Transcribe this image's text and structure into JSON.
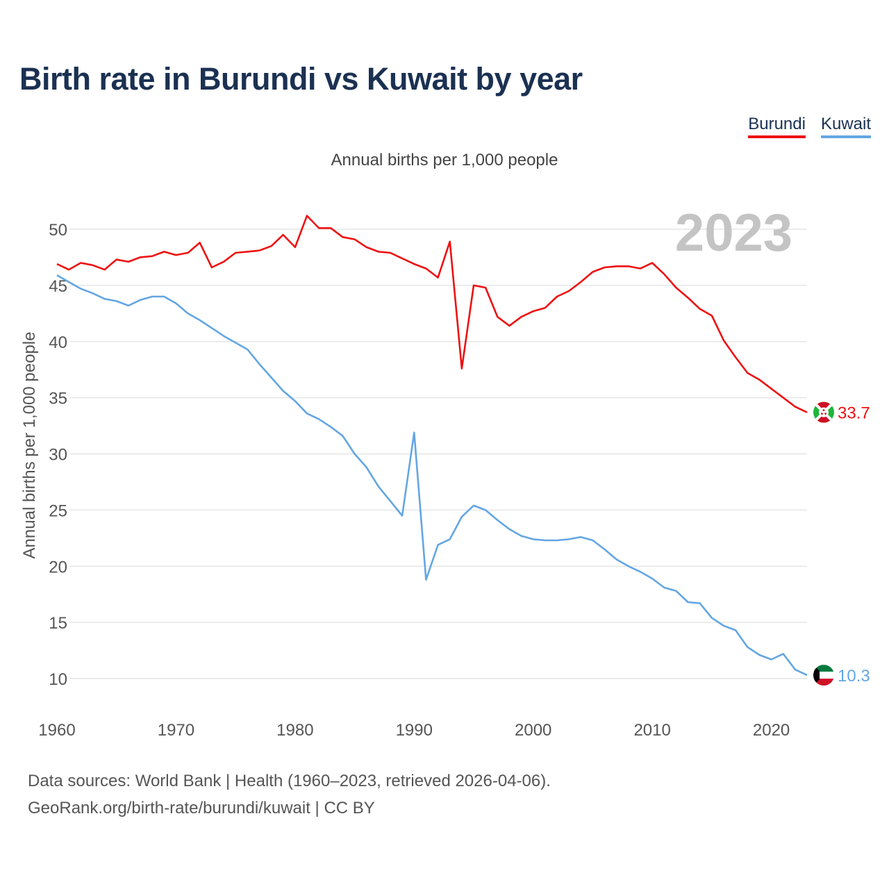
{
  "title": "Birth rate in Burundi vs Kuwait by year",
  "subtitle": "Annual births per 1,000 people",
  "footer": {
    "line1": "Data sources: World Bank | Health (1960–2023, retrieved 2026-04-06).",
    "line2": "GeoRank.org/birth-rate/burundi/kuwait | CC BY"
  },
  "legend": [
    {
      "label": "Burundi",
      "color": "#ee1111"
    },
    {
      "label": "Kuwait",
      "color": "#63a6e3"
    }
  ],
  "chart_data": {
    "type": "line",
    "title": "Birth rate in Burundi vs Kuwait by year",
    "xlabel": "",
    "ylabel": "Annual births per 1,000 people",
    "xlim": [
      1960,
      2023
    ],
    "ylim": [
      7.5,
      53
    ],
    "x_ticks": [
      1960,
      1970,
      1980,
      1990,
      2000,
      2010,
      2020
    ],
    "y_ticks": [
      10,
      15,
      20,
      25,
      30,
      35,
      40,
      45,
      50
    ],
    "year_label": "2023",
    "grid": true,
    "x": [
      1960,
      1961,
      1962,
      1963,
      1964,
      1965,
      1966,
      1967,
      1968,
      1969,
      1970,
      1971,
      1972,
      1973,
      1974,
      1975,
      1976,
      1977,
      1978,
      1979,
      1980,
      1981,
      1982,
      1983,
      1984,
      1985,
      1986,
      1987,
      1988,
      1989,
      1990,
      1991,
      1992,
      1993,
      1994,
      1995,
      1996,
      1997,
      1998,
      1999,
      2000,
      2001,
      2002,
      2003,
      2004,
      2005,
      2006,
      2007,
      2008,
      2009,
      2010,
      2011,
      2012,
      2013,
      2014,
      2015,
      2016,
      2017,
      2018,
      2019,
      2020,
      2021,
      2022,
      2023
    ],
    "series": [
      {
        "name": "Burundi",
        "color": "#ee1111",
        "end_label": "33.7",
        "values": [
          46.9,
          46.4,
          47.0,
          46.8,
          46.4,
          47.3,
          47.1,
          47.5,
          47.6,
          48.0,
          47.7,
          47.9,
          48.8,
          46.6,
          47.1,
          47.9,
          48.0,
          48.1,
          48.5,
          49.5,
          48.4,
          51.2,
          50.1,
          50.1,
          49.3,
          49.1,
          48.4,
          48.0,
          47.9,
          47.4,
          46.9,
          46.5,
          45.7,
          48.9,
          37.6,
          45.0,
          44.8,
          42.2,
          41.4,
          42.2,
          42.7,
          43.0,
          44.0,
          44.5,
          45.3,
          46.2,
          46.6,
          46.7,
          46.7,
          46.5,
          47.0,
          46.0,
          44.8,
          43.9,
          42.9,
          42.3,
          40.1,
          38.6,
          37.2,
          36.6,
          35.8,
          35.0,
          34.2,
          33.7
        ]
      },
      {
        "name": "Kuwait",
        "color": "#63a6e3",
        "end_label": "10.3",
        "values": [
          45.9,
          45.3,
          44.7,
          44.3,
          43.8,
          43.6,
          43.2,
          43.7,
          44.0,
          44.0,
          43.4,
          42.5,
          41.9,
          41.2,
          40.5,
          39.9,
          39.3,
          38.0,
          36.8,
          35.6,
          34.7,
          33.6,
          33.1,
          32.4,
          31.6,
          30.0,
          28.8,
          27.1,
          25.8,
          24.5,
          31.9,
          18.8,
          21.9,
          22.4,
          24.4,
          25.4,
          25.0,
          24.1,
          23.3,
          22.7,
          22.4,
          22.3,
          22.3,
          22.4,
          22.6,
          22.3,
          21.5,
          20.6,
          20.0,
          19.5,
          18.9,
          18.1,
          17.8,
          16.8,
          16.7,
          15.4,
          14.7,
          14.3,
          12.8,
          12.1,
          11.7,
          12.2,
          10.8,
          10.3
        ]
      }
    ]
  }
}
